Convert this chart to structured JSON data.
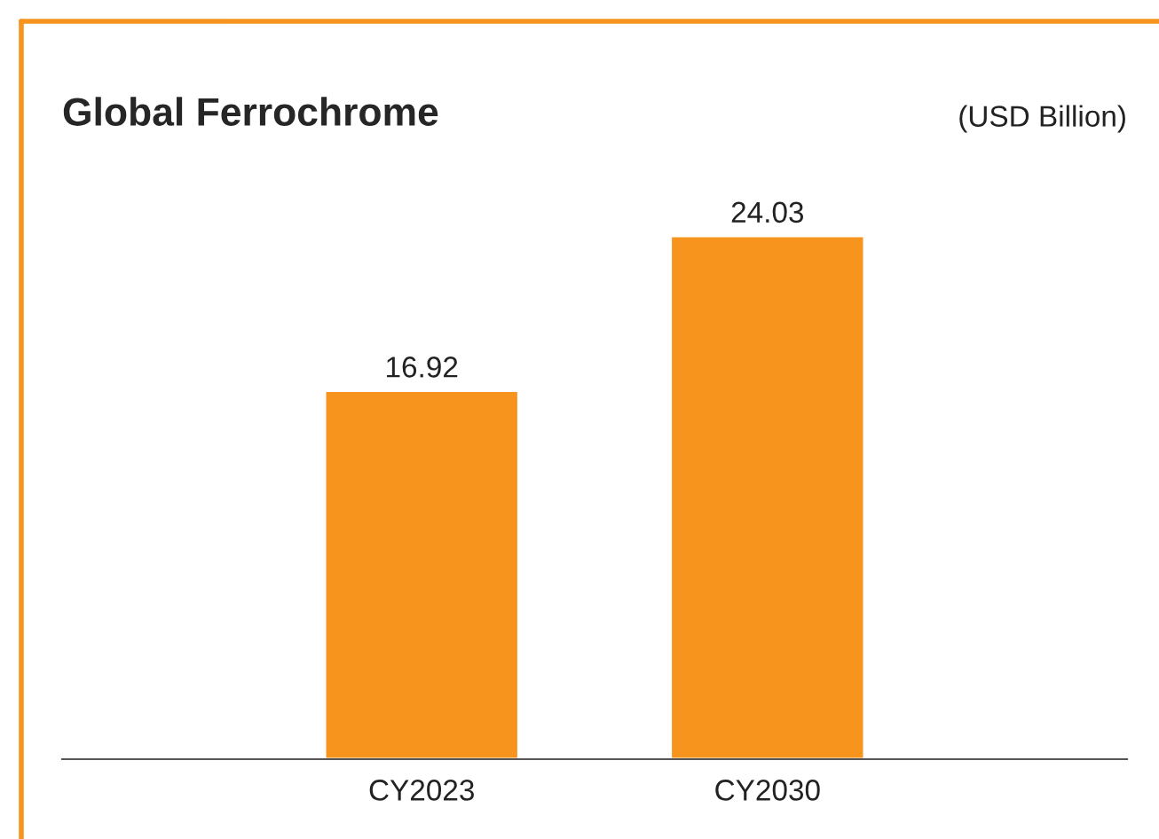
{
  "chart_data": {
    "type": "bar",
    "title": "Global Ferrochrome",
    "annotations": [
      "(USD Billion)"
    ],
    "categories": [
      "CY2023",
      "CY2030"
    ],
    "values": [
      16.92,
      24.03
    ],
    "color": "#f7941d",
    "data_labels": true,
    "grid": false,
    "legend": false
  }
}
